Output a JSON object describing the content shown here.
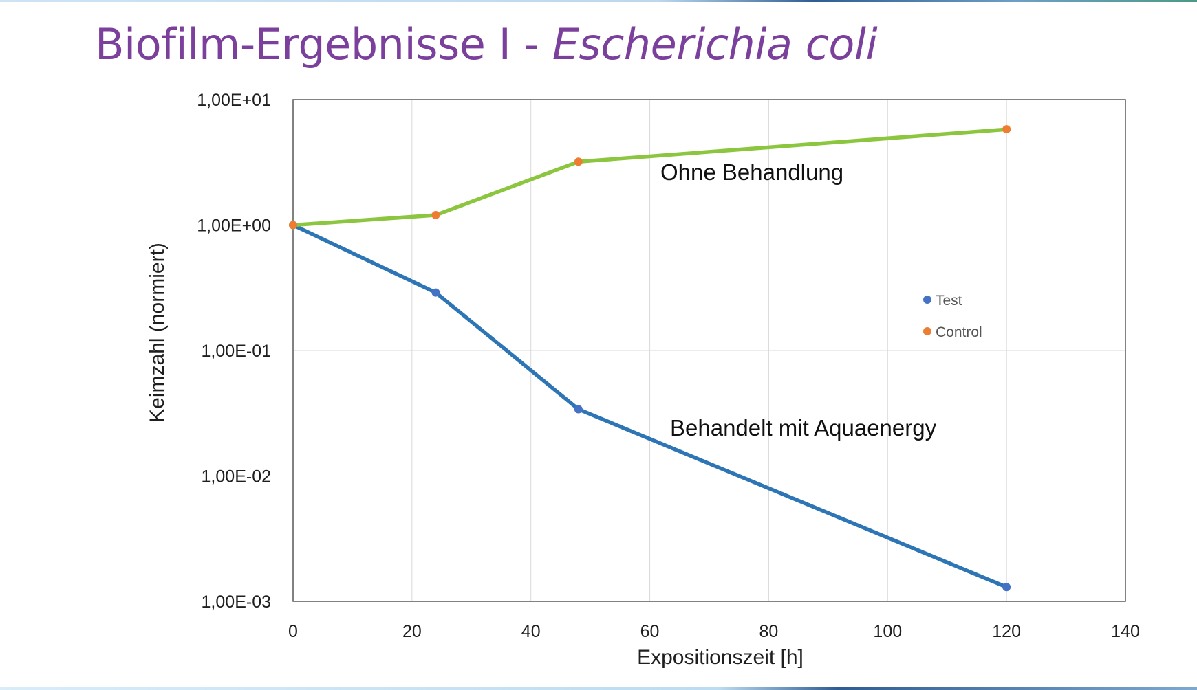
{
  "slide": {
    "title_main": "Biofilm-Ergebnisse I - ",
    "title_italic": "Escherichia coli"
  },
  "colors": {
    "title": "#7b3f9c",
    "test_line": "#2e75b6",
    "test_marker": "#4472c4",
    "control_line": "#8cc63f",
    "control_marker": "#ed7d31",
    "grid": "#d9d9d9",
    "axis_box": "#595959"
  },
  "chart_data": {
    "type": "line",
    "xlabel": "Expositionszeit [h]",
    "ylabel": "Keimzahl (normiert)",
    "xlim": [
      0,
      140
    ],
    "ylim": [
      0.001,
      10
    ],
    "y_scale": "log",
    "grid": true,
    "x_ticks": [
      "0",
      "20",
      "40",
      "60",
      "80",
      "100",
      "120",
      "140"
    ],
    "y_ticks": [
      "1,00E-03",
      "1,00E-02",
      "1,00E-01",
      "1,00E+00",
      "1,00E+01"
    ],
    "series": [
      {
        "name": "Test",
        "x": [
          0,
          24,
          48,
          120
        ],
        "y": [
          1.0,
          0.29,
          0.034,
          0.0013
        ]
      },
      {
        "name": "Control",
        "x": [
          0,
          24,
          48,
          120
        ],
        "y": [
          1.0,
          1.2,
          3.2,
          5.8
        ]
      }
    ],
    "legend": {
      "placement": "right",
      "entries": [
        "Test",
        "Control"
      ]
    },
    "annotations": [
      {
        "text": "Ohne Behandlung",
        "series": "Control"
      },
      {
        "text": "Behandelt mit Aquaenergy",
        "series": "Test"
      }
    ]
  }
}
